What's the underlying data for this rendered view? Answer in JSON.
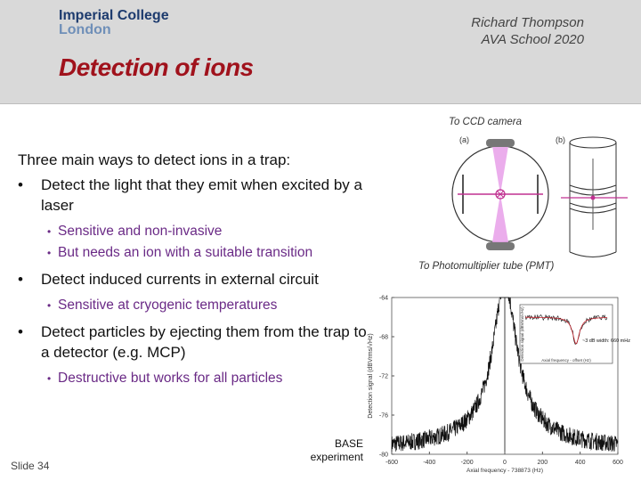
{
  "header": {
    "logo_line1": "Imperial College",
    "logo_line2": "London",
    "author": "Richard Thompson",
    "event": "AVA School 2020"
  },
  "title": "Detection of ions",
  "content": {
    "intro": "Three main ways to detect ions in a trap:",
    "bullets": [
      {
        "text": "Detect the light that they emit when excited by a laser",
        "sub": [
          "Sensitive and non-invasive",
          "But needs an ion with a suitable transition"
        ]
      },
      {
        "text": "Detect induced currents in external circuit",
        "sub": [
          "Sensitive at cryogenic temperatures"
        ]
      },
      {
        "text": "Detect particles by ejecting them from the trap to a detector (e.g. MCP)",
        "sub": [
          "Destructive but works for all particles"
        ]
      }
    ]
  },
  "figure": {
    "ccd_label": "To CCD camera",
    "pmt_label": "To Photomultiplier tube (PMT)",
    "panel_a": "(a)",
    "panel_b": "(b)"
  },
  "chart_data": {
    "type": "line",
    "xlabel": "Axial frequency - 738873 (Hz)",
    "ylabel": "Detection signal (dBVrms/√Hz)",
    "x_ticks": [
      -600,
      -400,
      -200,
      0,
      200,
      400,
      600
    ],
    "y_ticks": [
      -64,
      -68,
      -72,
      -76,
      -80
    ],
    "xlim": [
      -600,
      600
    ],
    "ylim": [
      -80,
      -64
    ],
    "inset": {
      "xlabel": "Axial frequency - offset (Hz)",
      "ylabel": "Detection signal (dBVrms/√Hz)",
      "annotation": "~3 dB width: 660 mHz"
    },
    "source_label_line1": "BASE",
    "source_label_line2": "experiment"
  },
  "footer": {
    "slide": "Slide 34"
  }
}
